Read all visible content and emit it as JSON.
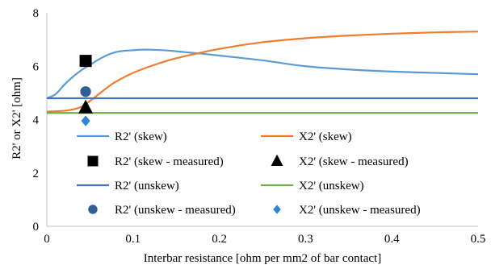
{
  "chart_data": {
    "type": "line",
    "title": "",
    "xlabel": "Interbar resistance [ohm per mm2 of bar contact]",
    "ylabel": "R2' or X2' [ohm]",
    "xlim": [
      0,
      0.5
    ],
    "ylim": [
      0,
      8
    ],
    "xticks": [
      0,
      0.1,
      0.2,
      0.3,
      0.4,
      0.5
    ],
    "xtick_labels": [
      "0",
      "0.1",
      "0.2",
      "0.3",
      "0.4",
      "0.5"
    ],
    "yticks": [
      0,
      2,
      4,
      6,
      8
    ],
    "ytick_labels": [
      "0",
      "2",
      "4",
      "6",
      "8"
    ],
    "grid": false,
    "legend_position": "inside-center",
    "series": [
      {
        "name": "R2' (skew)",
        "kind": "line",
        "color": "#5B9BD5",
        "x": [
          0,
          0.01,
          0.02,
          0.03,
          0.04,
          0.05,
          0.06,
          0.07,
          0.08,
          0.09,
          0.1,
          0.11,
          0.12,
          0.14,
          0.16,
          0.18,
          0.2,
          0.25,
          0.3,
          0.35,
          0.4,
          0.45,
          0.5
        ],
        "y": [
          4.8,
          4.95,
          5.3,
          5.6,
          5.85,
          6.05,
          6.25,
          6.42,
          6.53,
          6.58,
          6.6,
          6.62,
          6.62,
          6.59,
          6.53,
          6.47,
          6.4,
          6.22,
          6.0,
          5.88,
          5.8,
          5.75,
          5.7
        ]
      },
      {
        "name": "X2' (skew)",
        "kind": "line",
        "color": "#ED7D31",
        "x": [
          0,
          0.02,
          0.03,
          0.04,
          0.05,
          0.06,
          0.07,
          0.08,
          0.1,
          0.12,
          0.15,
          0.2,
          0.25,
          0.3,
          0.35,
          0.4,
          0.45,
          0.5
        ],
        "y": [
          4.3,
          4.33,
          4.38,
          4.48,
          4.7,
          4.95,
          5.2,
          5.42,
          5.75,
          6.0,
          6.3,
          6.65,
          6.9,
          7.05,
          7.15,
          7.22,
          7.27,
          7.3
        ]
      },
      {
        "name": "R2' (skew - measured)",
        "kind": "marker",
        "marker": "square",
        "color": "#000000",
        "x": [
          0.045
        ],
        "y": [
          6.2
        ]
      },
      {
        "name": "X2' (skew - measured)",
        "kind": "marker",
        "marker": "triangle",
        "color": "#000000",
        "x": [
          0.045
        ],
        "y": [
          4.45
        ]
      },
      {
        "name": "R2' (unskew)",
        "kind": "line",
        "color": "#4472C4",
        "x": [
          0,
          0.5
        ],
        "y": [
          4.8,
          4.8
        ]
      },
      {
        "name": "X2' (unskew)",
        "kind": "line",
        "color": "#70AD47",
        "x": [
          0,
          0.5
        ],
        "y": [
          4.25,
          4.25
        ]
      },
      {
        "name": "R2' (unskew - measured)",
        "kind": "marker",
        "marker": "circle",
        "color": "#2E6096",
        "x": [
          0.045
        ],
        "y": [
          5.05
        ]
      },
      {
        "name": "X2' (unskew - measured)",
        "kind": "marker",
        "marker": "diamond",
        "color": "#2E86D9",
        "x": [
          0.045
        ],
        "y": [
          3.95
        ]
      }
    ]
  }
}
